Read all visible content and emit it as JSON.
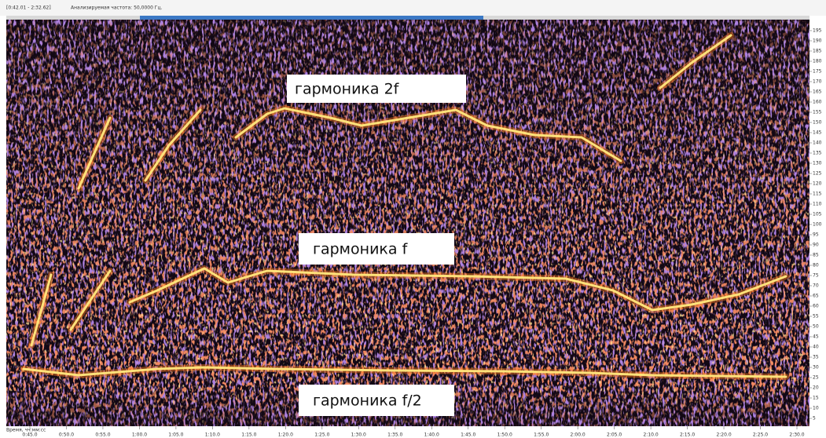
{
  "header": {
    "range": "[0:42.01 - 2:32.62]",
    "frequency": "Анализируемая частота: 50,0000 Гц."
  },
  "y_axis": {
    "labels": [
      "195",
      "190",
      "185",
      "180",
      "175",
      "170",
      "165",
      "160",
      "155",
      "150",
      "145",
      "140",
      "135",
      "130",
      "125",
      "120",
      "115",
      "110",
      "105",
      "100",
      "95",
      "90",
      "85",
      "80",
      "75",
      "70",
      "65",
      "60",
      "55",
      "50",
      "45",
      "40",
      "35",
      "30",
      "25",
      "20",
      "15",
      "10",
      "5"
    ]
  },
  "x_axis": {
    "title": "Время, чч:мм:сс",
    "labels": [
      "0:45.0",
      "0:50.0",
      "0:55.0",
      "1:00.0",
      "1:05.0",
      "1:10.0",
      "1:15.0",
      "1:20.0",
      "1:25.0",
      "1:30.0",
      "1:35.0",
      "1:40.0",
      "1:45.0",
      "1:50.0",
      "1:55.0",
      "2:00.0",
      "2:05.0",
      "2:10.0",
      "2:15.0",
      "2:20.0",
      "2:25.0",
      "2:30.0"
    ]
  },
  "annotations": [
    "гармоника 2f",
    "гармоника f",
    "гармоника f/2"
  ]
}
